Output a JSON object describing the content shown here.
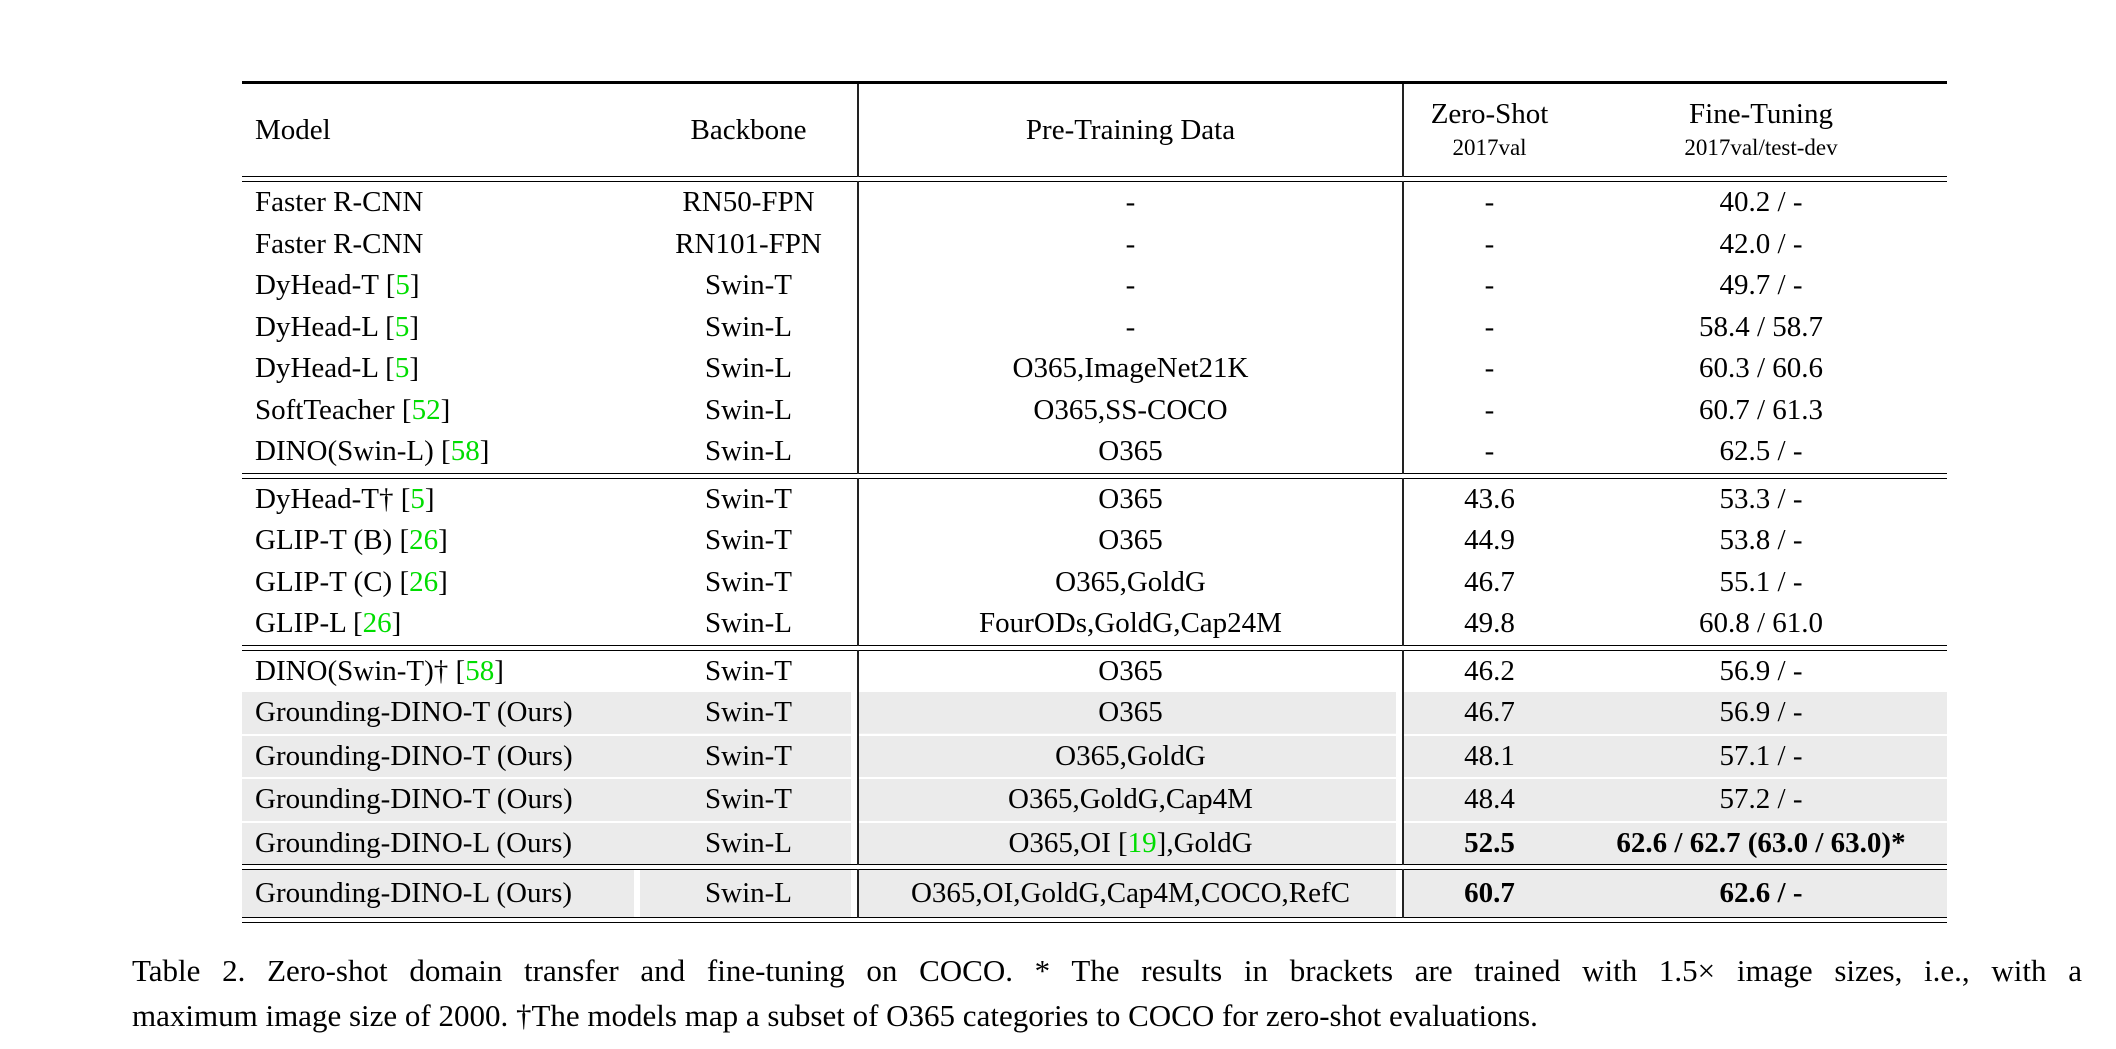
{
  "colors": {
    "citation_green": "#00dd00",
    "row_highlight_gray": "#ebebeb",
    "rule_black": "#000000",
    "page_background": "#ffffff"
  },
  "table": {
    "header": {
      "model": "Model",
      "backbone": "Backbone",
      "pretraining": "Pre-Training Data",
      "zero_shot_title": "Zero-Shot",
      "zero_shot_sub": "2017val",
      "fine_tuning_title": "Fine-Tuning",
      "fine_tuning_sub": "2017val/test-dev"
    },
    "sections": [
      {
        "rows": [
          {
            "model": "Faster R-CNN",
            "backbone": "RN50-FPN",
            "pretraining": "-",
            "zero_shot": "-",
            "fine_tuning": "40.2 / -"
          },
          {
            "model": "Faster R-CNN",
            "backbone": "RN101-FPN",
            "pretraining": "-",
            "zero_shot": "-",
            "fine_tuning": "42.0 / -"
          },
          {
            "model": [
              {
                "t": "DyHead-T ["
              },
              {
                "t": "5",
                "g": true
              },
              {
                "t": "]"
              }
            ],
            "backbone": "Swin-T",
            "pretraining": "-",
            "zero_shot": "-",
            "fine_tuning": "49.7 / -"
          },
          {
            "model": [
              {
                "t": "DyHead-L ["
              },
              {
                "t": "5",
                "g": true
              },
              {
                "t": "]"
              }
            ],
            "backbone": "Swin-L",
            "pretraining": "-",
            "zero_shot": "-",
            "fine_tuning": "58.4 / 58.7"
          },
          {
            "model": [
              {
                "t": "DyHead-L ["
              },
              {
                "t": "5",
                "g": true
              },
              {
                "t": "]"
              }
            ],
            "backbone": "Swin-L",
            "pretraining": "O365,ImageNet21K",
            "zero_shot": "-",
            "fine_tuning": "60.3 / 60.6"
          },
          {
            "model": [
              {
                "t": "SoftTeacher ["
              },
              {
                "t": "52",
                "g": true
              },
              {
                "t": "]"
              }
            ],
            "backbone": "Swin-L",
            "pretraining": "O365,SS-COCO",
            "zero_shot": "-",
            "fine_tuning": "60.7 / 61.3"
          },
          {
            "model": [
              {
                "t": "DINO(Swin-L) ["
              },
              {
                "t": "58",
                "g": true
              },
              {
                "t": "]"
              }
            ],
            "backbone": "Swin-L",
            "pretraining": "O365",
            "zero_shot": "-",
            "fine_tuning": "62.5 / -"
          }
        ]
      },
      {
        "rows": [
          {
            "model": [
              {
                "t": "DyHead-T† ["
              },
              {
                "t": "5",
                "g": true
              },
              {
                "t": "]"
              }
            ],
            "backbone": "Swin-T",
            "pretraining": "O365",
            "zero_shot": "43.6",
            "fine_tuning": "53.3 / -"
          },
          {
            "model": [
              {
                "t": "GLIP-T (B) ["
              },
              {
                "t": "26",
                "g": true
              },
              {
                "t": "]"
              }
            ],
            "backbone": "Swin-T",
            "pretraining": "O365",
            "zero_shot": "44.9",
            "fine_tuning": "53.8 / -"
          },
          {
            "model": [
              {
                "t": "GLIP-T (C) ["
              },
              {
                "t": "26",
                "g": true
              },
              {
                "t": "]"
              }
            ],
            "backbone": "Swin-T",
            "pretraining": "O365,GoldG",
            "zero_shot": "46.7",
            "fine_tuning": "55.1 / -"
          },
          {
            "model": [
              {
                "t": "GLIP-L ["
              },
              {
                "t": "26",
                "g": true
              },
              {
                "t": "]"
              }
            ],
            "backbone": "Swin-L",
            "pretraining": "FourODs,GoldG,Cap24M",
            "zero_shot": "49.8",
            "fine_tuning": "60.8 / 61.0"
          }
        ]
      },
      {
        "rows": [
          {
            "model": [
              {
                "t": "DINO(Swin-T)† ["
              },
              {
                "t": "58",
                "g": true
              },
              {
                "t": "]"
              }
            ],
            "backbone": "Swin-T",
            "pretraining": "O365",
            "zero_shot": "46.2",
            "fine_tuning": "56.9 / -"
          },
          {
            "model": "Grounding-DINO-T (Ours)",
            "backbone": "Swin-T",
            "pretraining": "O365",
            "zero_shot": "46.7",
            "fine_tuning": "56.9 / -",
            "highlight": true
          },
          {
            "model": "Grounding-DINO-T (Ours)",
            "backbone": "Swin-T",
            "pretraining": "O365,GoldG",
            "zero_shot": "48.1",
            "fine_tuning": "57.1 / -",
            "highlight": true
          },
          {
            "model": "Grounding-DINO-T (Ours)",
            "backbone": "Swin-T",
            "pretraining": "O365,GoldG,Cap4M",
            "zero_shot": "48.4",
            "fine_tuning": "57.2 / -",
            "highlight": true
          },
          {
            "model": "Grounding-DINO-L (Ours)",
            "backbone": "Swin-L",
            "pretraining": [
              {
                "t": "O365,OI ["
              },
              {
                "t": "19",
                "g": true
              },
              {
                "t": "],GoldG"
              }
            ],
            "zero_shot": "52.5",
            "fine_tuning": "62.6 / 62.7 (63.0 / 63.0)*",
            "highlight": true,
            "bold": true
          }
        ]
      },
      {
        "rows": [
          {
            "model": "Grounding-DINO-L (Ours)",
            "backbone": "Swin-L",
            "pretraining": "O365,OI,GoldG,Cap4M,COCO,RefC",
            "zero_shot": "60.7",
            "fine_tuning": "62.6 / -",
            "highlight": true,
            "bold": true
          }
        ]
      }
    ]
  },
  "caption": {
    "line1": "Table 2. Zero-shot domain transfer and fine-tuning on COCO. * The results in brackets are trained with 1.5× image sizes, i.e., with a",
    "line2": "maximum image size of 2000. †The models map a subset of O365 categories to COCO for zero-shot evaluations."
  }
}
